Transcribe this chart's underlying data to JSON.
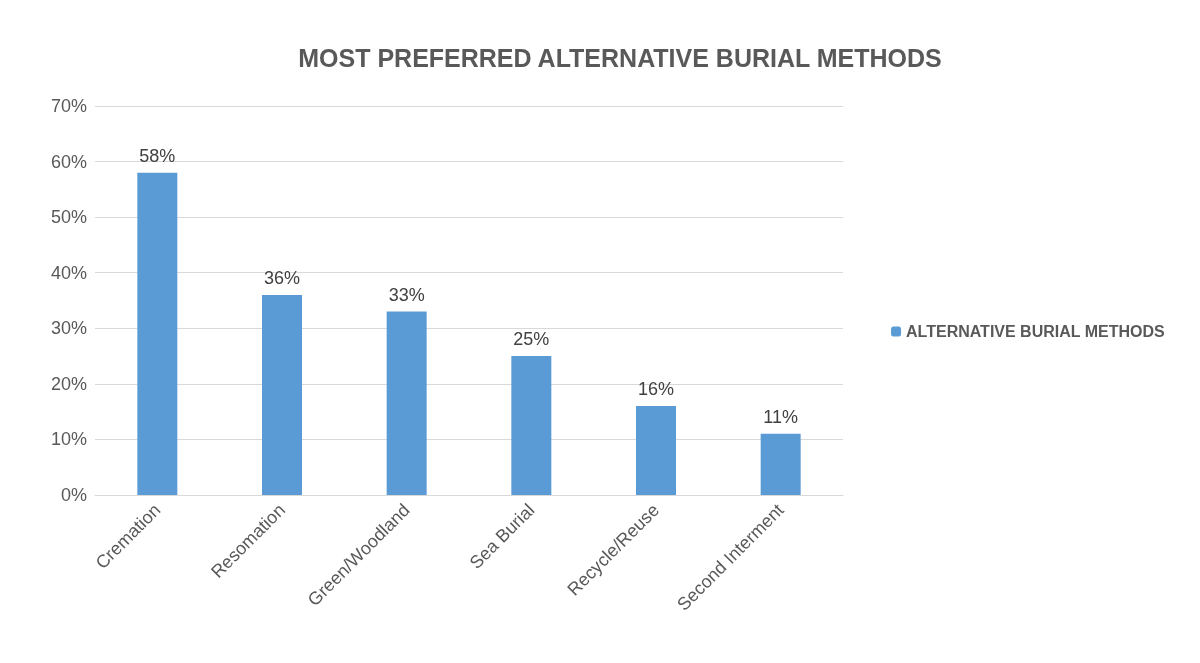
{
  "chart_data": {
    "type": "bar",
    "title": "MOST PREFERRED ALTERNATIVE BURIAL METHODS",
    "categories": [
      "Cremation",
      "Resomation",
      "Green/Woodland",
      "Sea Burial",
      "Recycle/Reuse",
      "Second Interment"
    ],
    "series": [
      {
        "name": "ALTERNATIVE BURIAL METHODS",
        "color": "#5b9bd5",
        "values": [
          58,
          36,
          33,
          25,
          16,
          11
        ],
        "value_labels": [
          "58%",
          "36%",
          "33%",
          "25%",
          "16%",
          "11%"
        ]
      }
    ],
    "ylim": [
      0,
      70
    ],
    "yticks": [
      {
        "value": 0,
        "label": "0%"
      },
      {
        "value": 10,
        "label": "10%"
      },
      {
        "value": 20,
        "label": "20%"
      },
      {
        "value": 30,
        "label": "30%"
      },
      {
        "value": 40,
        "label": "40%"
      },
      {
        "value": 50,
        "label": "50%"
      },
      {
        "value": 60,
        "label": "60%"
      },
      {
        "value": 70,
        "label": "70%"
      }
    ],
    "grid": "y",
    "legend": "right"
  }
}
